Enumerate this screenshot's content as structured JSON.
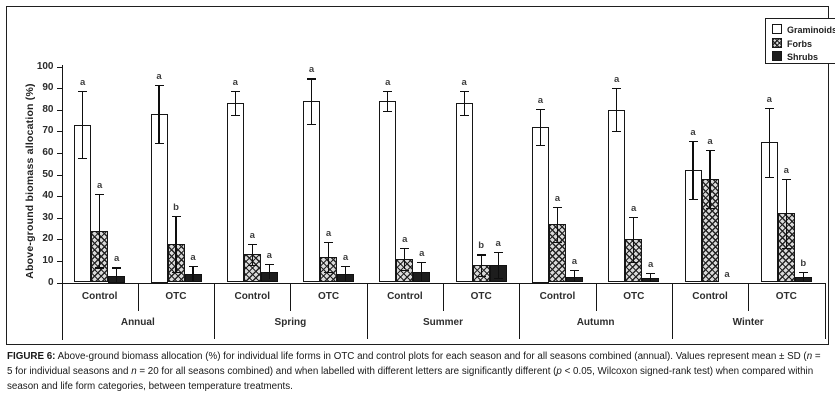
{
  "chart_data": {
    "type": "bar",
    "title": "",
    "ylabel": "Above-ground biomass allocation (%)",
    "xlabel": "",
    "ylim": [
      0,
      100
    ],
    "ytick_step": 10,
    "grid": false,
    "legend_position": "top-right",
    "series": [
      {
        "name": "Graminoids",
        "pattern": "open"
      },
      {
        "name": "Forbs",
        "pattern": "crosshatch"
      },
      {
        "name": "Shrubs",
        "pattern": "solid"
      }
    ],
    "value_unit": "%",
    "error_type": "SD",
    "groups": [
      {
        "season": "Annual",
        "treatments": [
          {
            "label": "Control",
            "bars": [
              {
                "series": "Graminoids",
                "value": 73,
                "sd": 15.5,
                "letter": "a"
              },
              {
                "series": "Forbs",
                "value": 24,
                "sd": 17,
                "letter": "a"
              },
              {
                "series": "Shrubs",
                "value": 3,
                "sd": 4,
                "letter": "a"
              }
            ]
          },
          {
            "label": "OTC",
            "bars": [
              {
                "series": "Graminoids",
                "value": 78,
                "sd": 13.5,
                "letter": "a"
              },
              {
                "series": "Forbs",
                "value": 18,
                "sd": 13,
                "letter": "b"
              },
              {
                "series": "Shrubs",
                "value": 4,
                "sd": 3.5,
                "letter": "a"
              }
            ]
          }
        ]
      },
      {
        "season": "Spring",
        "treatments": [
          {
            "label": "Control",
            "bars": [
              {
                "series": "Graminoids",
                "value": 83,
                "sd": 5.5,
                "letter": "a"
              },
              {
                "series": "Forbs",
                "value": 13,
                "sd": 5,
                "letter": "a"
              },
              {
                "series": "Shrubs",
                "value": 5,
                "sd": 3.5,
                "letter": "a"
              }
            ]
          },
          {
            "label": "OTC",
            "bars": [
              {
                "series": "Graminoids",
                "value": 84,
                "sd": 10.5,
                "letter": "a"
              },
              {
                "series": "Forbs",
                "value": 12,
                "sd": 7,
                "letter": "a"
              },
              {
                "series": "Shrubs",
                "value": 4,
                "sd": 3.5,
                "letter": "a"
              }
            ]
          }
        ]
      },
      {
        "season": "Summer",
        "treatments": [
          {
            "label": "Control",
            "bars": [
              {
                "series": "Graminoids",
                "value": 84,
                "sd": 4.5,
                "letter": "a"
              },
              {
                "series": "Forbs",
                "value": 11,
                "sd": 5,
                "letter": "a"
              },
              {
                "series": "Shrubs",
                "value": 5,
                "sd": 4.5,
                "letter": "a"
              }
            ]
          },
          {
            "label": "OTC",
            "bars": [
              {
                "series": "Graminoids",
                "value": 83,
                "sd": 5.5,
                "letter": "a"
              },
              {
                "series": "Forbs",
                "value": 8,
                "sd": 5,
                "letter": "b"
              },
              {
                "series": "Shrubs",
                "value": 8,
                "sd": 6,
                "letter": "a"
              }
            ]
          }
        ]
      },
      {
        "season": "Autumn",
        "treatments": [
          {
            "label": "Control",
            "bars": [
              {
                "series": "Graminoids",
                "value": 72,
                "sd": 8.5,
                "letter": "a"
              },
              {
                "series": "Forbs",
                "value": 27,
                "sd": 8,
                "letter": "a"
              },
              {
                "series": "Shrubs",
                "value": 2.5,
                "sd": 3.5,
                "letter": "a"
              }
            ]
          },
          {
            "label": "OTC",
            "bars": [
              {
                "series": "Graminoids",
                "value": 80,
                "sd": 10,
                "letter": "a"
              },
              {
                "series": "Forbs",
                "value": 20,
                "sd": 10.5,
                "letter": "a"
              },
              {
                "series": "Shrubs",
                "value": 2,
                "sd": 2.5,
                "letter": "a"
              }
            ]
          }
        ]
      },
      {
        "season": "Winter",
        "treatments": [
          {
            "label": "Control",
            "bars": [
              {
                "series": "Graminoids",
                "value": 52,
                "sd": 13.5,
                "letter": "a"
              },
              {
                "series": "Forbs",
                "value": 48,
                "sd": 13.5,
                "letter": "a"
              },
              {
                "series": "Shrubs",
                "value": 0,
                "sd": 0,
                "letter": "a"
              }
            ]
          },
          {
            "label": "OTC",
            "bars": [
              {
                "series": "Graminoids",
                "value": 65,
                "sd": 16,
                "letter": "a"
              },
              {
                "series": "Forbs",
                "value": 32,
                "sd": 16,
                "letter": "a"
              },
              {
                "series": "Shrubs",
                "value": 2.5,
                "sd": 2.5,
                "letter": "b"
              }
            ]
          }
        ]
      }
    ]
  },
  "caption": {
    "segments": [
      {
        "text": "FIGURE 6:",
        "bold": true,
        "italic": false
      },
      {
        "text": " Above-ground biomass allocation (%) for individual life forms in OTC and control plots for each season and for all seasons combined (annual). Values represent mean ± SD (",
        "bold": false,
        "italic": false
      },
      {
        "text": "n",
        "bold": false,
        "italic": true
      },
      {
        "text": " = 5 for individual seasons and ",
        "bold": false,
        "italic": false
      },
      {
        "text": "n",
        "bold": false,
        "italic": true
      },
      {
        "text": " = 20 for all seasons combined) and when labelled with different letters are significantly different (",
        "bold": false,
        "italic": false
      },
      {
        "text": "p",
        "bold": false,
        "italic": true
      },
      {
        "text": " < 0.05, Wilcoxon signed-rank test) when compared within season and life form categories, between temperature treatments.",
        "bold": false,
        "italic": false
      }
    ]
  }
}
